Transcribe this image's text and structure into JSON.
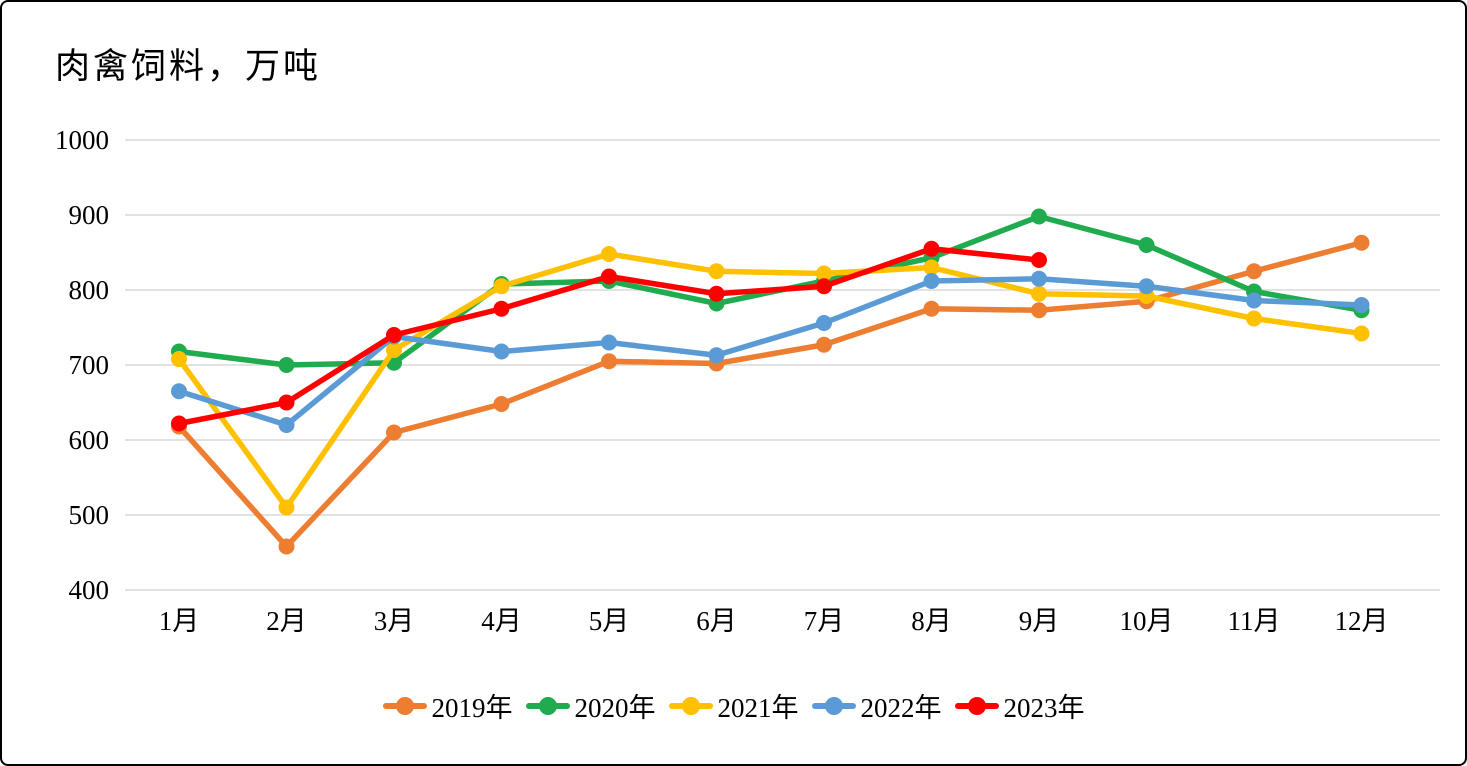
{
  "chart_data": {
    "type": "line",
    "title": "肉禽饲料，万吨",
    "categories": [
      "1月",
      "2月",
      "3月",
      "4月",
      "5月",
      "6月",
      "7月",
      "8月",
      "9月",
      "10月",
      "11月",
      "12月"
    ],
    "y_ticks": [
      1000,
      900,
      800,
      700,
      600,
      500,
      400
    ],
    "ylim": [
      400,
      1000
    ],
    "grid": true,
    "gridline_color": "#D9D9D9",
    "axis_text_color": "#000000",
    "legend_position": "bottom",
    "series": [
      {
        "name": "2019年",
        "color": "#ED7D31",
        "values": [
          618,
          458,
          610,
          648,
          705,
          702,
          727,
          775,
          773,
          785,
          825,
          863
        ]
      },
      {
        "name": "2020年",
        "color": "#20AC4E",
        "values": [
          718,
          700,
          703,
          808,
          812,
          782,
          812,
          843,
          898,
          860,
          798,
          773
        ]
      },
      {
        "name": "2021年",
        "color": "#FFC000",
        "values": [
          708,
          510,
          720,
          805,
          848,
          825,
          822,
          830,
          795,
          792,
          762,
          742
        ]
      },
      {
        "name": "2022年",
        "color": "#5B9BD5",
        "values": [
          665,
          620,
          738,
          718,
          730,
          713,
          756,
          812,
          815,
          805,
          786,
          780
        ]
      },
      {
        "name": "2023年",
        "color": "#FF0000",
        "values": [
          622,
          650,
          740,
          775,
          818,
          795,
          805,
          855,
          840
        ]
      }
    ]
  }
}
